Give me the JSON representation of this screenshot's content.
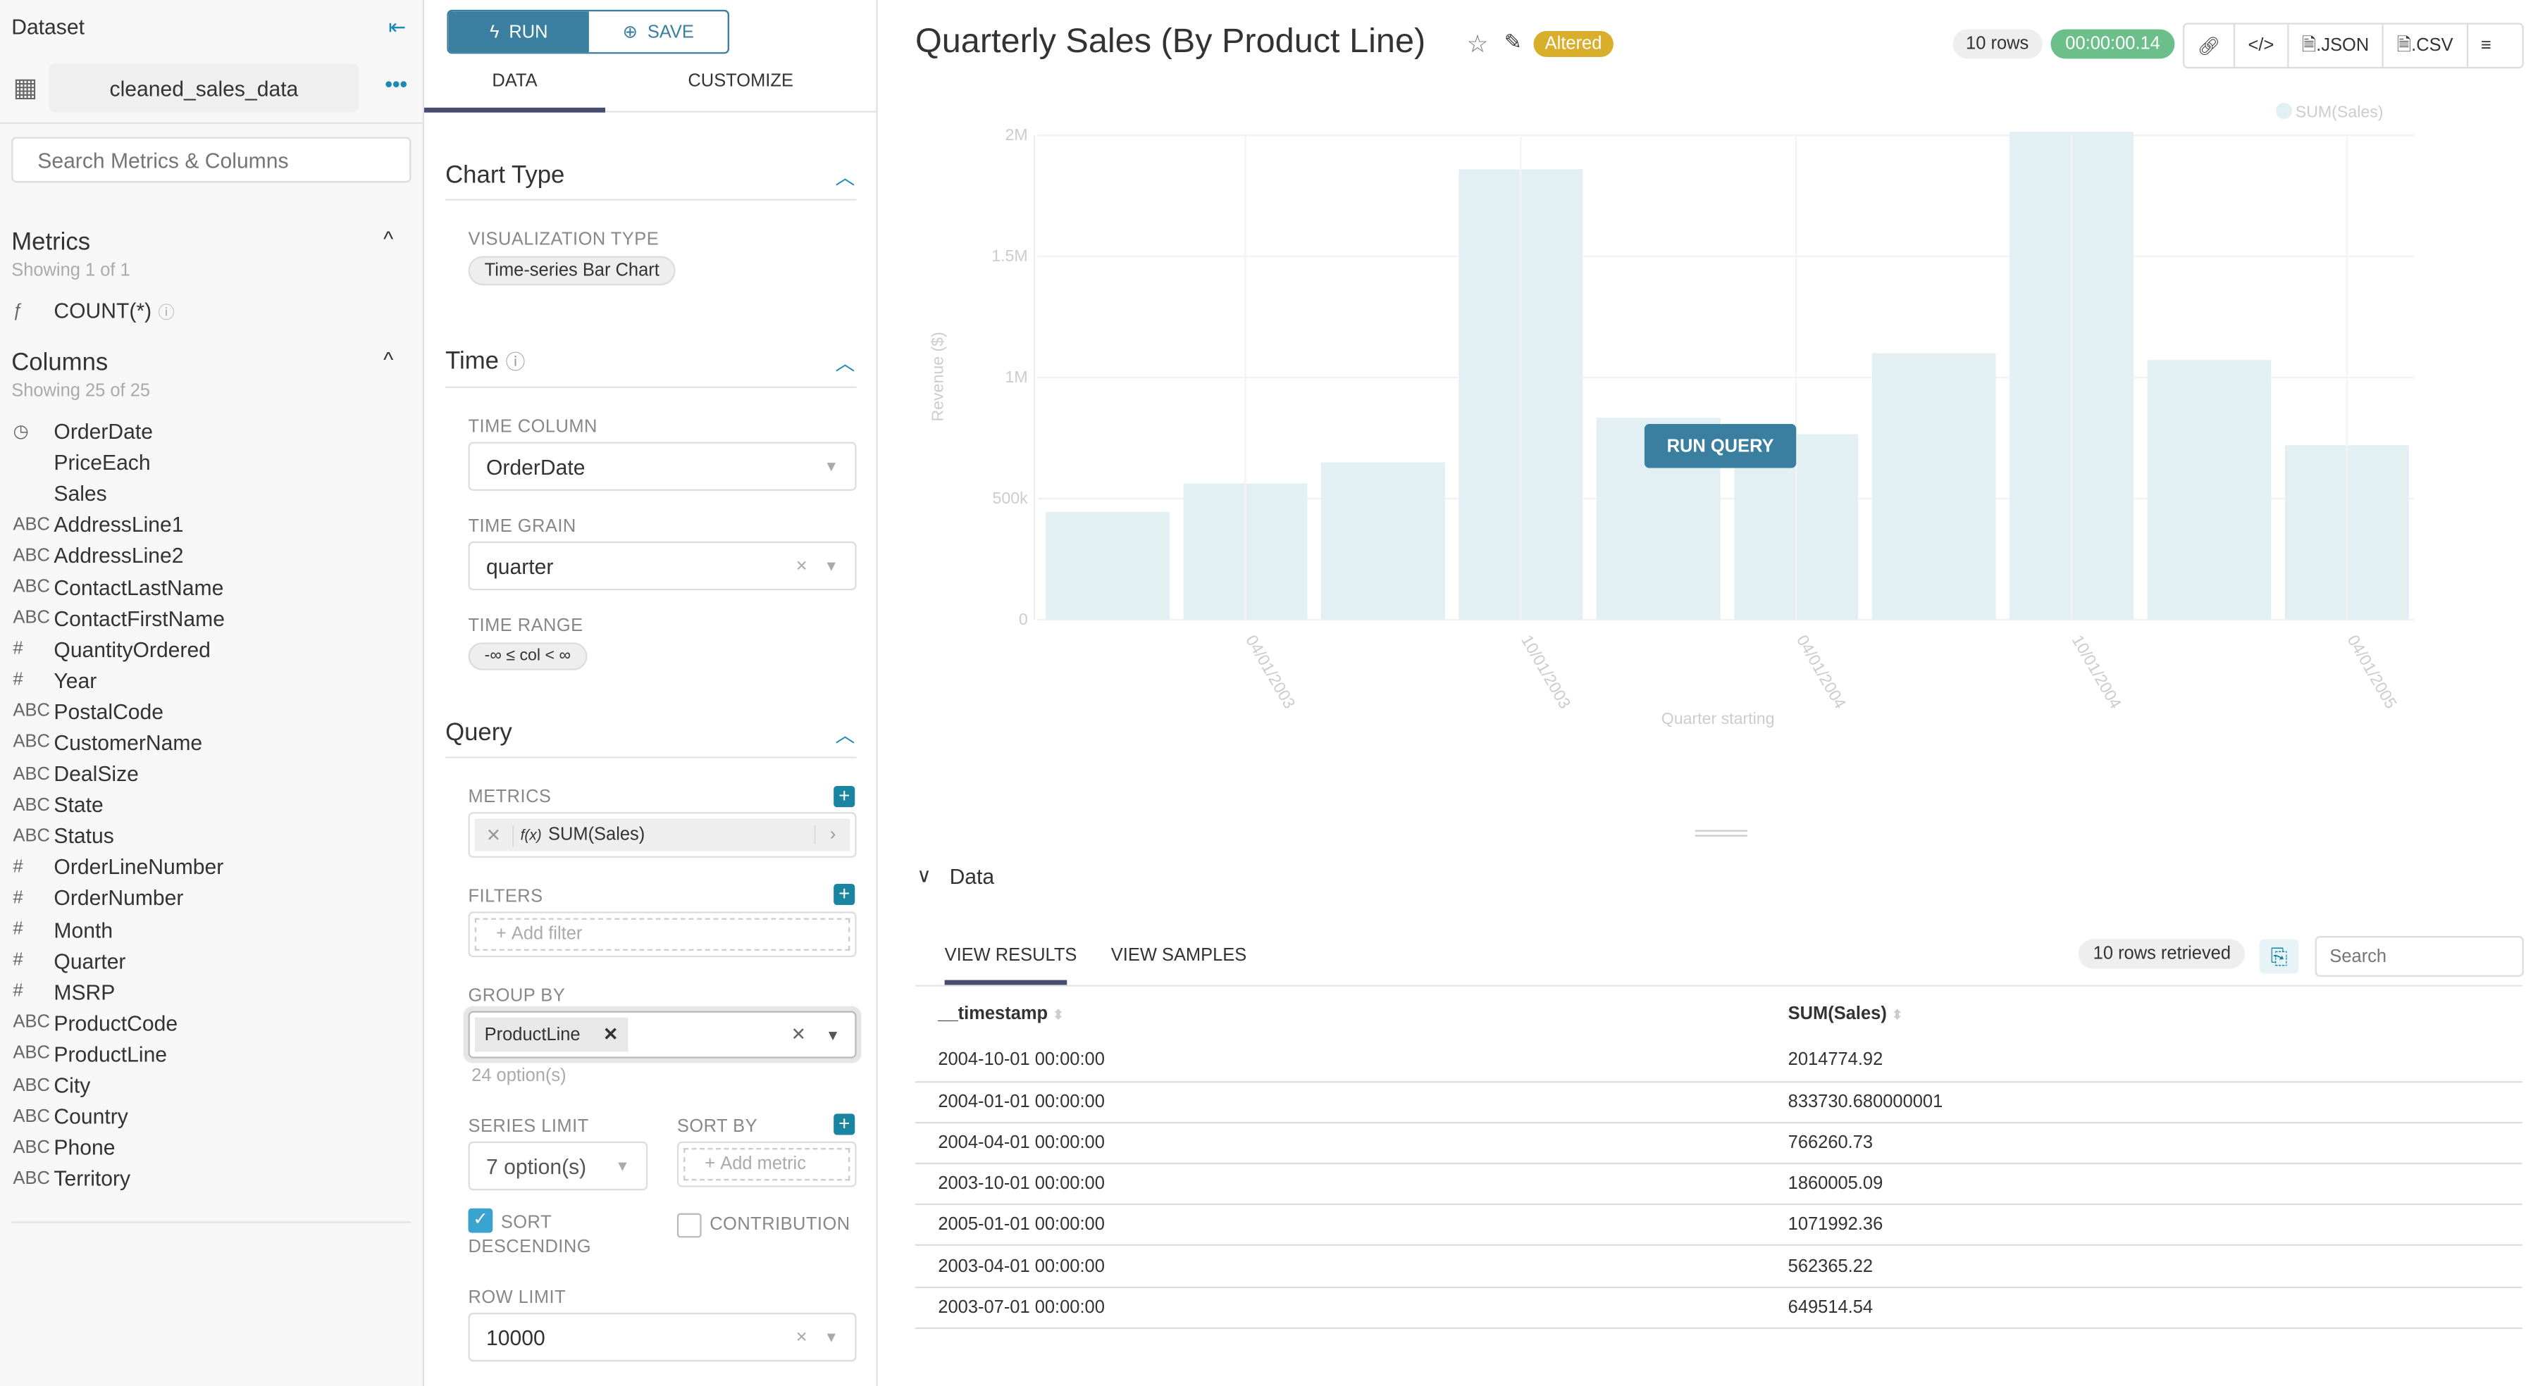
{
  "sidebar": {
    "title": "Dataset",
    "dataset_name": "cleaned_sales_data",
    "search_placeholder": "Search Metrics & Columns",
    "metrics_title": "Metrics",
    "metrics_count": "Showing 1 of 1",
    "metrics": [
      {
        "type": "ƒ",
        "name": "COUNT(*)"
      }
    ],
    "columns_title": "Columns",
    "columns_count": "Showing 25 of 25",
    "columns": [
      {
        "type": "◷",
        "name": "OrderDate"
      },
      {
        "type": "",
        "name": "PriceEach"
      },
      {
        "type": "",
        "name": "Sales"
      },
      {
        "type": "ABC",
        "name": "AddressLine1"
      },
      {
        "type": "ABC",
        "name": "AddressLine2"
      },
      {
        "type": "ABC",
        "name": "ContactLastName"
      },
      {
        "type": "ABC",
        "name": "ContactFirstName"
      },
      {
        "type": "#",
        "name": "QuantityOrdered"
      },
      {
        "type": "#",
        "name": "Year"
      },
      {
        "type": "ABC",
        "name": "PostalCode"
      },
      {
        "type": "ABC",
        "name": "CustomerName"
      },
      {
        "type": "ABC",
        "name": "DealSize"
      },
      {
        "type": "ABC",
        "name": "State"
      },
      {
        "type": "ABC",
        "name": "Status"
      },
      {
        "type": "#",
        "name": "OrderLineNumber"
      },
      {
        "type": "#",
        "name": "OrderNumber"
      },
      {
        "type": "#",
        "name": "Month"
      },
      {
        "type": "#",
        "name": "Quarter"
      },
      {
        "type": "#",
        "name": "MSRP"
      },
      {
        "type": "ABC",
        "name": "ProductCode"
      },
      {
        "type": "ABC",
        "name": "ProductLine"
      },
      {
        "type": "ABC",
        "name": "City"
      },
      {
        "type": "ABC",
        "name": "Country"
      },
      {
        "type": "ABC",
        "name": "Phone"
      },
      {
        "type": "ABC",
        "name": "Territory"
      }
    ]
  },
  "controls": {
    "run": "RUN",
    "save": "SAVE",
    "tab_data": "DATA",
    "tab_customize": "CUSTOMIZE",
    "chart_type_title": "Chart Type",
    "viz_type_label": "VISUALIZATION TYPE",
    "viz_type": "Time-series Bar Chart",
    "time_title": "Time",
    "time_column_label": "TIME COLUMN",
    "time_column": "OrderDate",
    "time_grain_label": "TIME GRAIN",
    "time_grain": "quarter",
    "time_range_label": "TIME RANGE",
    "time_range": "-∞ ≤ col < ∞",
    "query_title": "Query",
    "metrics_label": "METRICS",
    "metric": "SUM(Sales)",
    "filters_label": "FILTERS",
    "add_filter": "Add filter",
    "group_by_label": "GROUP BY",
    "group_by": "ProductLine",
    "group_by_options": "24 option(s)",
    "series_limit_label": "SERIES LIMIT",
    "series_limit": "7 option(s)",
    "sort_by_label": "SORT BY",
    "add_metric": "Add metric",
    "sort_desc_label": "SORT DESCENDING",
    "sort_desc": true,
    "contribution_label": "CONTRIBUTION",
    "contribution": false,
    "row_limit_label": "ROW LIMIT",
    "row_limit": "10000"
  },
  "header": {
    "title": "Quarterly Sales (By Product Line)",
    "altered": "Altered",
    "rows": "10 rows",
    "duration": "00:00:00.14",
    "json": ".JSON",
    "csv": ".CSV"
  },
  "run_query": "RUN QUERY",
  "chart_data": {
    "type": "bar",
    "xlabel": "Quarter starting",
    "ylabel": "Revenue ($)",
    "ylim": [
      0,
      2000000
    ],
    "y_ticks": [
      "0",
      "500k",
      "1M",
      "1.5M",
      "2M"
    ],
    "y_tick_values": [
      0,
      500000,
      1000000,
      1500000,
      2000000
    ],
    "x_tick_labels": [
      "04/01/2003",
      "10/01/2003",
      "04/01/2004",
      "10/01/2004",
      "04/01/2005"
    ],
    "categories": [
      "2003-01-01",
      "2003-04-01",
      "2003-07-01",
      "2003-10-01",
      "2004-01-01",
      "2004-04-01",
      "2004-07-01",
      "2004-10-01",
      "2005-01-01",
      "2005-04-01"
    ],
    "series": [
      {
        "name": "SUM(Sales)",
        "color": "#e2f0f4",
        "values": [
          445000,
          562365.22,
          649514.54,
          1860005.09,
          833730.68,
          766260.73,
          1100000,
          2014774.92,
          1071992.36,
          720000
        ]
      }
    ],
    "legend": "top-right",
    "grid": true
  },
  "data_panel": {
    "title": "Data",
    "tab_results": "VIEW RESULTS",
    "tab_samples": "VIEW SAMPLES",
    "retrieved": "10 rows retrieved",
    "search_placeholder": "Search",
    "columns": [
      "__timestamp",
      "SUM(Sales)"
    ],
    "rows": [
      [
        "2004-10-01 00:00:00",
        "2014774.92"
      ],
      [
        "2004-01-01 00:00:00",
        "833730.680000001"
      ],
      [
        "2004-04-01 00:00:00",
        "766260.73"
      ],
      [
        "2003-10-01 00:00:00",
        "1860005.09"
      ],
      [
        "2005-01-01 00:00:00",
        "1071992.36"
      ],
      [
        "2003-04-01 00:00:00",
        "562365.22"
      ],
      [
        "2003-07-01 00:00:00",
        "649514.54"
      ]
    ]
  },
  "colors": {
    "primary": "#1a85a0",
    "run_bg": "#3a7fa0",
    "altered": "#d9ae2a",
    "success": "#6cbf8a"
  }
}
